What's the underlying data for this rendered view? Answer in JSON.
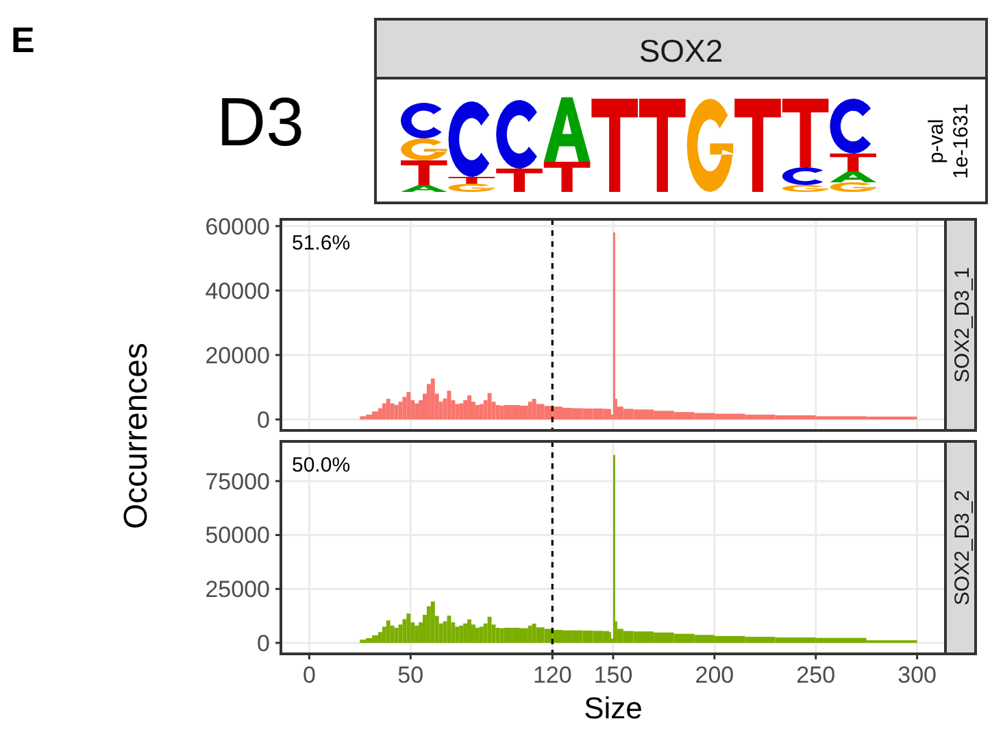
{
  "chart_data": [
    {
      "type": "other",
      "title": "SOX2",
      "annotations": [
        "E",
        "D3",
        "p-val 1e-1631"
      ]
    },
    {
      "type": "histogram",
      "title": "SOX2_D3_1",
      "ylabel": "Occurrences",
      "color": "#f8766d",
      "bins": [
        25,
        28,
        31,
        34,
        36,
        38,
        40,
        42,
        44,
        46,
        48,
        50,
        52,
        54,
        56,
        58,
        60,
        62,
        64,
        66,
        68,
        70,
        72,
        74,
        76,
        78,
        80,
        82,
        84,
        86,
        88,
        90,
        92,
        94,
        96,
        100,
        104,
        108,
        110,
        112,
        116,
        120,
        125,
        130,
        135,
        140,
        145,
        148,
        149,
        150,
        151,
        152,
        155,
        160,
        170,
        180,
        190,
        200,
        215,
        230,
        250,
        275,
        300
      ],
      "values": [
        1000,
        1500,
        2500,
        3500,
        5000,
        6400,
        5000,
        4500,
        5500,
        7000,
        8500,
        6000,
        5000,
        6000,
        8000,
        11000,
        12700,
        8000,
        5500,
        6500,
        8900,
        6000,
        4800,
        5000,
        6000,
        7500,
        5500,
        4500,
        4800,
        6000,
        8200,
        5500,
        4500,
        4300,
        4500,
        4500,
        4300,
        5500,
        6400,
        4800,
        4200,
        4000,
        3600,
        3500,
        3400,
        3400,
        3300,
        3200,
        1500,
        58000,
        6400,
        4000,
        3300,
        3100,
        2700,
        2300,
        2000,
        1800,
        1500,
        1300,
        1000,
        900
      ],
      "xlim": [
        -14,
        314
      ],
      "xticks": [
        0,
        50,
        120,
        150,
        200,
        250,
        300
      ],
      "ylim": [
        -3400,
        62100
      ],
      "yticks": [
        0,
        20000,
        40000,
        60000
      ],
      "grid": true,
      "tick_labels": "y",
      "annotations": [
        "51.6%"
      ],
      "ref_lines": [
        {
          "axis": "x",
          "value": 120,
          "line_style": "dashed",
          "color": "#000000"
        }
      ]
    },
    {
      "type": "histogram",
      "title": "SOX2_D3_2",
      "xlabel": "Size",
      "color": "#7cae00",
      "bins": [
        25,
        28,
        31,
        34,
        36,
        38,
        40,
        42,
        44,
        46,
        48,
        50,
        52,
        54,
        56,
        58,
        60,
        62,
        64,
        66,
        68,
        70,
        72,
        74,
        76,
        78,
        80,
        82,
        84,
        86,
        88,
        90,
        92,
        94,
        96,
        100,
        104,
        108,
        110,
        112,
        116,
        120,
        125,
        130,
        135,
        140,
        145,
        148,
        149,
        150,
        151,
        152,
        155,
        160,
        170,
        180,
        190,
        200,
        215,
        230,
        250,
        275,
        300
      ],
      "values": [
        1500,
        2200,
        3500,
        5000,
        7500,
        10400,
        8000,
        7000,
        8500,
        11000,
        13600,
        9500,
        8000,
        9500,
        13000,
        17000,
        19200,
        12500,
        9000,
        10000,
        12600,
        9500,
        7500,
        8000,
        9000,
        10900,
        8500,
        7000,
        7500,
        9000,
        12100,
        8500,
        7000,
        6800,
        7000,
        7000,
        6800,
        8000,
        8900,
        7200,
        6500,
        6000,
        5800,
        5800,
        5700,
        5600,
        5500,
        5000,
        2000,
        87100,
        10000,
        6500,
        5500,
        5300,
        4800,
        4200,
        3700,
        3200,
        2800,
        2500,
        2300,
        1200
      ],
      "xlim": [
        -14,
        314
      ],
      "xticks": [
        0,
        50,
        120,
        150,
        200,
        250,
        300
      ],
      "ylim": [
        -5100,
        93400
      ],
      "yticks": [
        0,
        25000,
        50000,
        75000
      ],
      "grid": true,
      "annotations": [
        "50.0%"
      ],
      "ref_lines": [
        {
          "axis": "x",
          "value": 120,
          "line_style": "dashed",
          "color": "#000000"
        }
      ]
    }
  ]
}
